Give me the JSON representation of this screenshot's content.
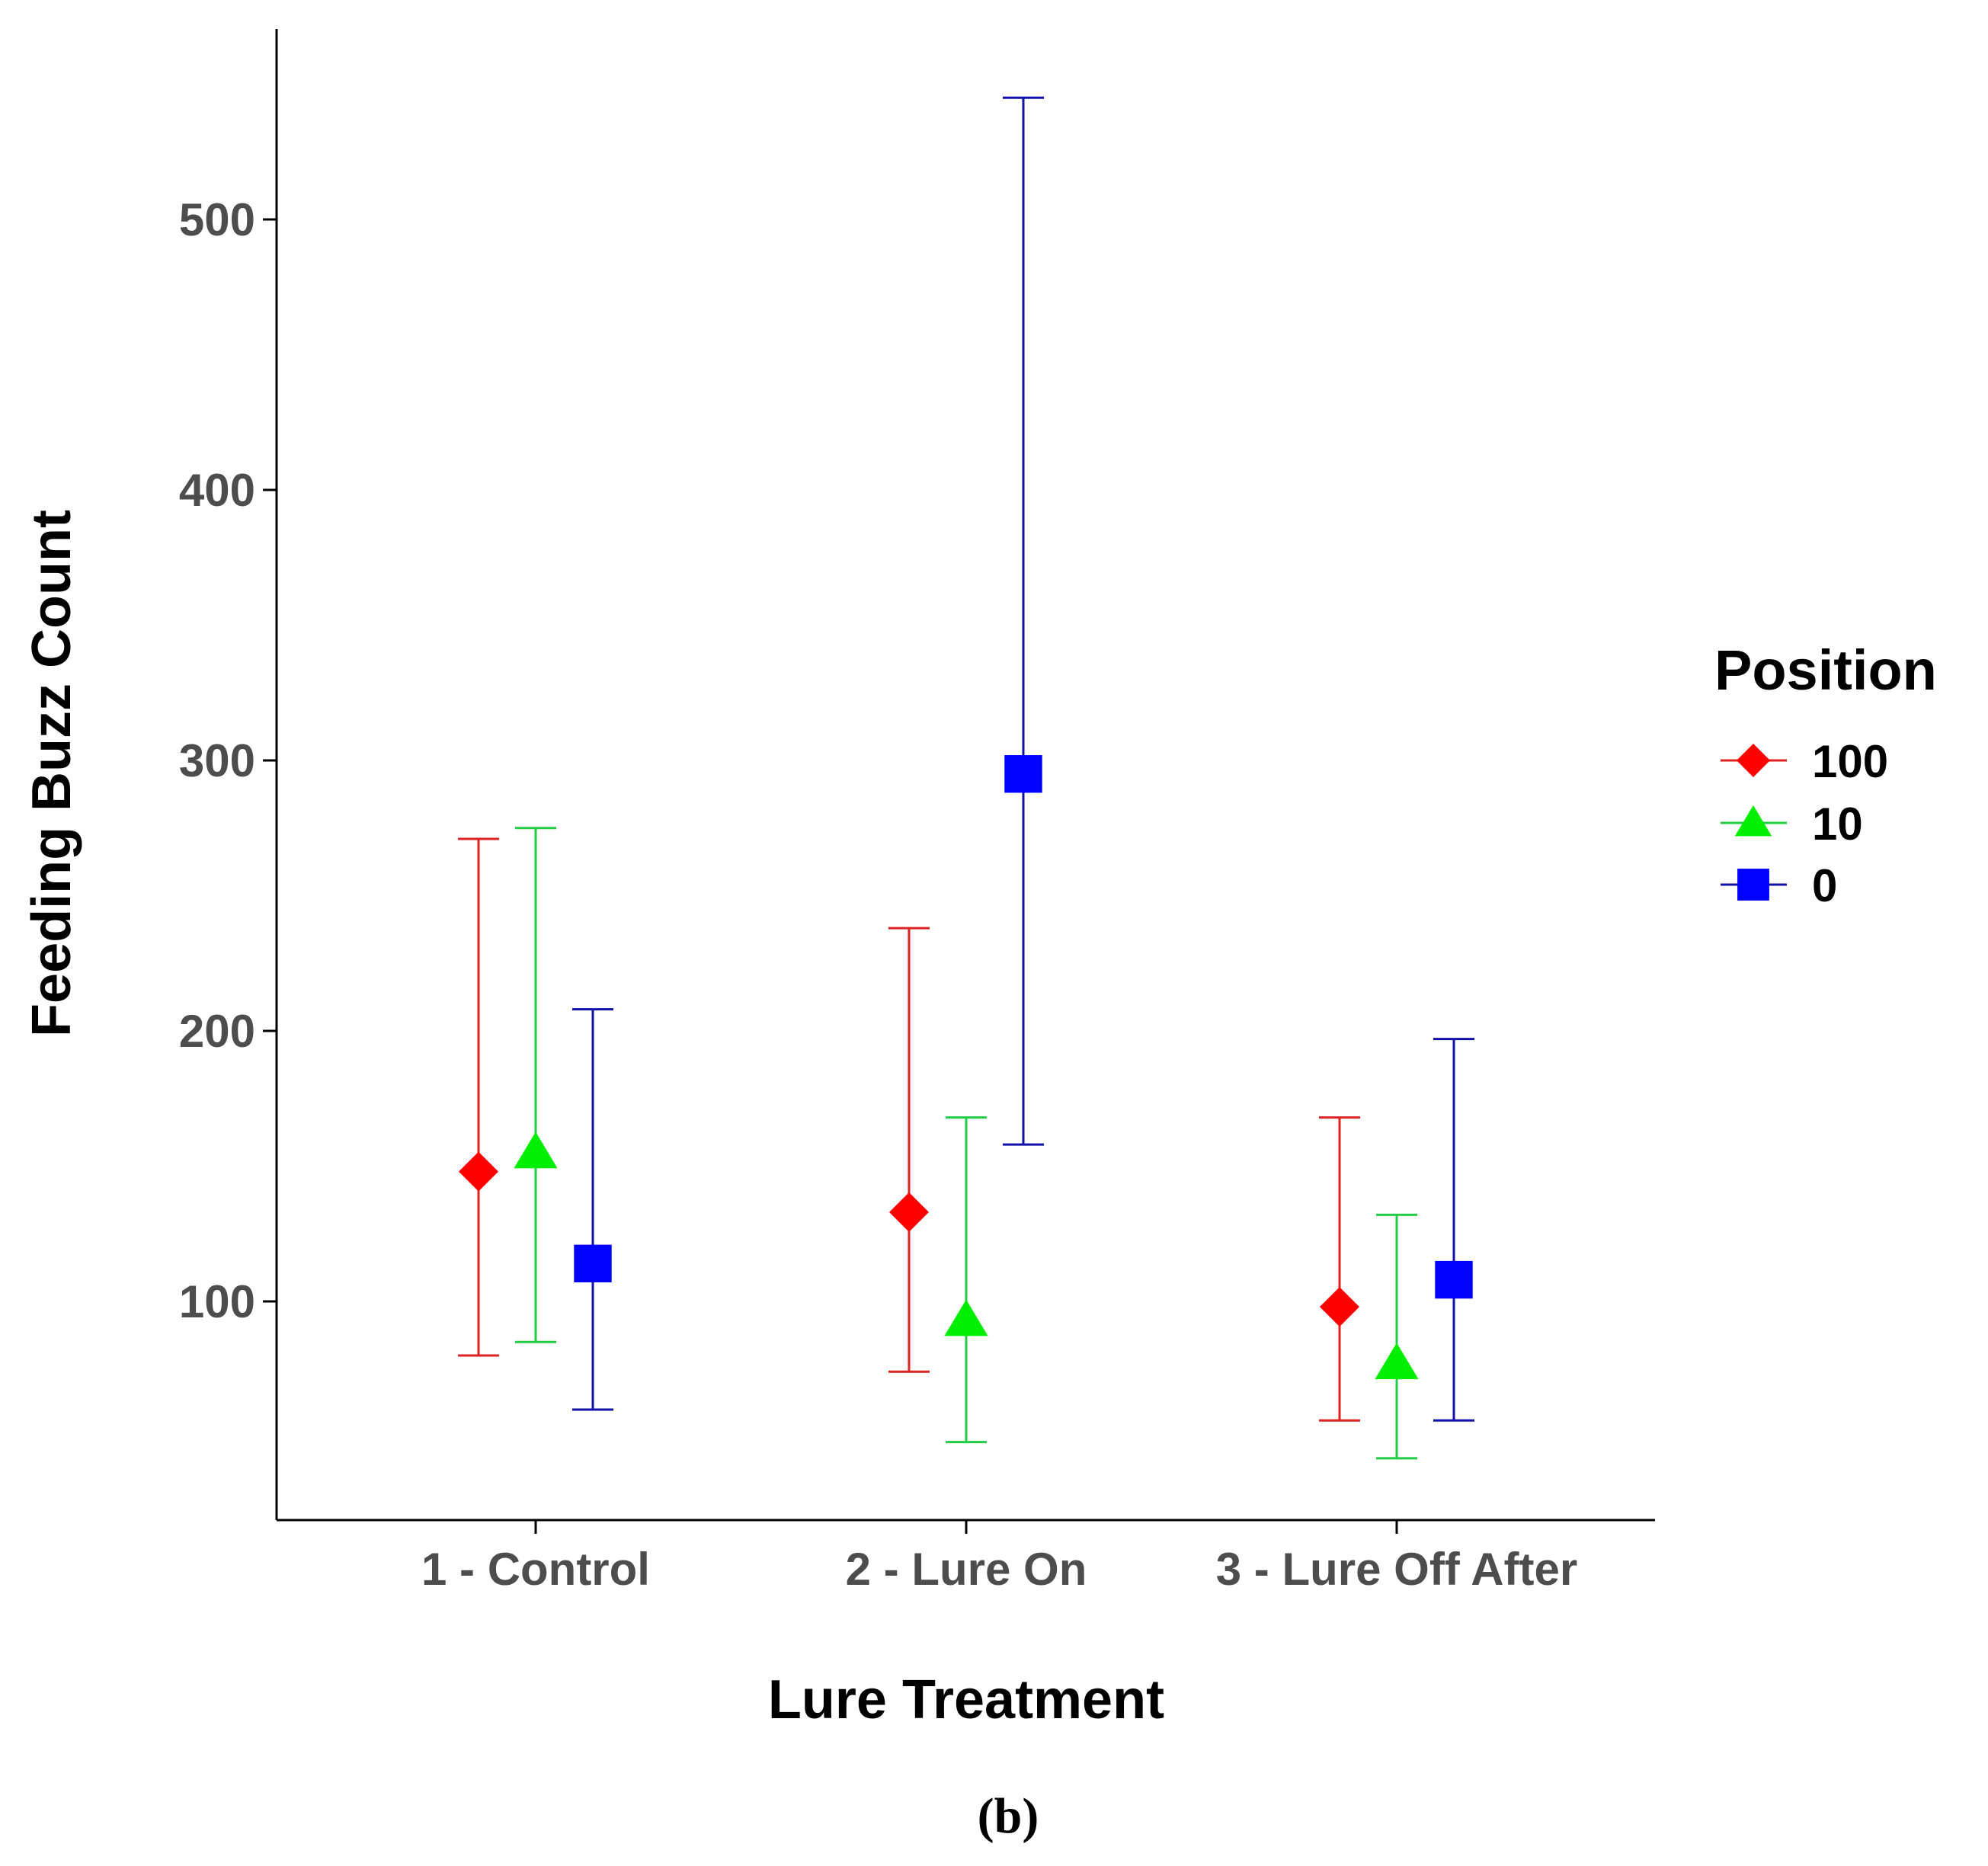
{
  "chart_data": {
    "type": "scatter",
    "title": "",
    "xlabel": "Lure Treatment",
    "ylabel": "Feeding Buzz Count",
    "categories": [
      "1 - Control",
      "2 - Lure On",
      "3 - Lure Off After"
    ],
    "ylim": [
      20,
      570
    ],
    "yticks": [
      100,
      200,
      300,
      400,
      500
    ],
    "grid": false,
    "legend": {
      "title": "Position",
      "placement": "right"
    },
    "series": [
      {
        "name": "100",
        "color": "#ff0000",
        "line_color": "#dd2222",
        "marker": "diamond",
        "values": [
          148,
          133,
          98
        ],
        "lower": [
          80,
          74,
          56
        ],
        "upper": [
          271,
          238,
          168
        ]
      },
      {
        "name": "10",
        "color": "#00ee00",
        "line_color": "#22cc44",
        "marker": "triangle",
        "values": [
          155,
          93,
          77
        ],
        "lower": [
          85,
          48,
          42
        ],
        "upper": [
          275,
          168,
          132
        ]
      },
      {
        "name": "0",
        "color": "#0000ff",
        "line_color": "#1111aa",
        "marker": "square",
        "values": [
          114,
          295,
          108
        ],
        "lower": [
          60,
          158,
          56
        ],
        "upper": [
          208,
          545,
          197
        ]
      }
    ]
  },
  "caption": "(b)"
}
